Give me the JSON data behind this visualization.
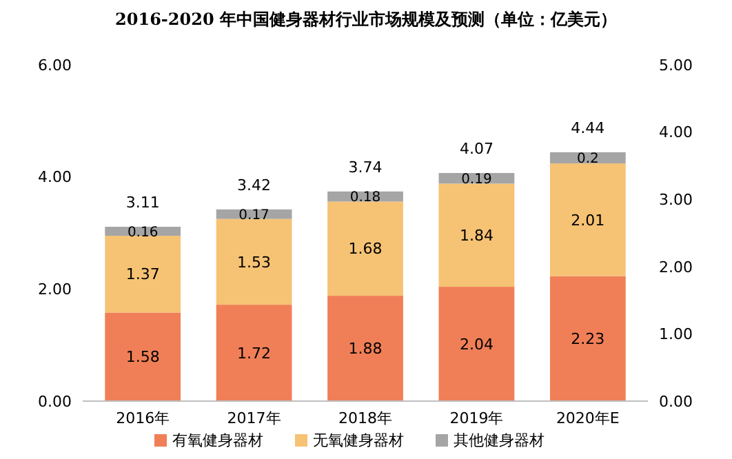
{
  "chart_data": {
    "type": "bar",
    "title": "2016-2020 年中国健身器材行业市场规模及预测（单位：亿美元）",
    "categories": [
      "2016年",
      "2017年",
      "2018年",
      "2019年",
      "2020年E"
    ],
    "stacked": true,
    "series": [
      {
        "name": "有氧健身器材",
        "color": "#f07f57",
        "values": [
          1.58,
          1.72,
          1.88,
          2.04,
          2.23
        ]
      },
      {
        "name": "无氧健身器材",
        "color": "#f6c274",
        "values": [
          1.37,
          1.53,
          1.68,
          1.84,
          2.01
        ]
      },
      {
        "name": "其他健身器材",
        "color": "#a5a5a5",
        "values": [
          0.16,
          0.17,
          0.18,
          0.19,
          0.2
        ]
      }
    ],
    "totals": [
      "3.11",
      "3.42",
      "3.74",
      "4.07",
      "4.44"
    ],
    "data_labels": true,
    "ylim": [
      0,
      6
    ],
    "yticks": [
      {
        "value": 0,
        "label": "0.00"
      },
      {
        "value": 2,
        "label": "2.00"
      },
      {
        "value": 4,
        "label": "4.00"
      },
      {
        "value": 6,
        "label": "6.00"
      }
    ],
    "y2lim": [
      0,
      5
    ],
    "y2ticks": [
      {
        "value": 0,
        "label": "0.00"
      },
      {
        "value": 1,
        "label": "1.00"
      },
      {
        "value": 2,
        "label": "2.00"
      },
      {
        "value": 3,
        "label": "3.00"
      },
      {
        "value": 4,
        "label": "4.00"
      },
      {
        "value": 5,
        "label": "5.00"
      }
    ],
    "legend": "bottom",
    "grid": false
  }
}
